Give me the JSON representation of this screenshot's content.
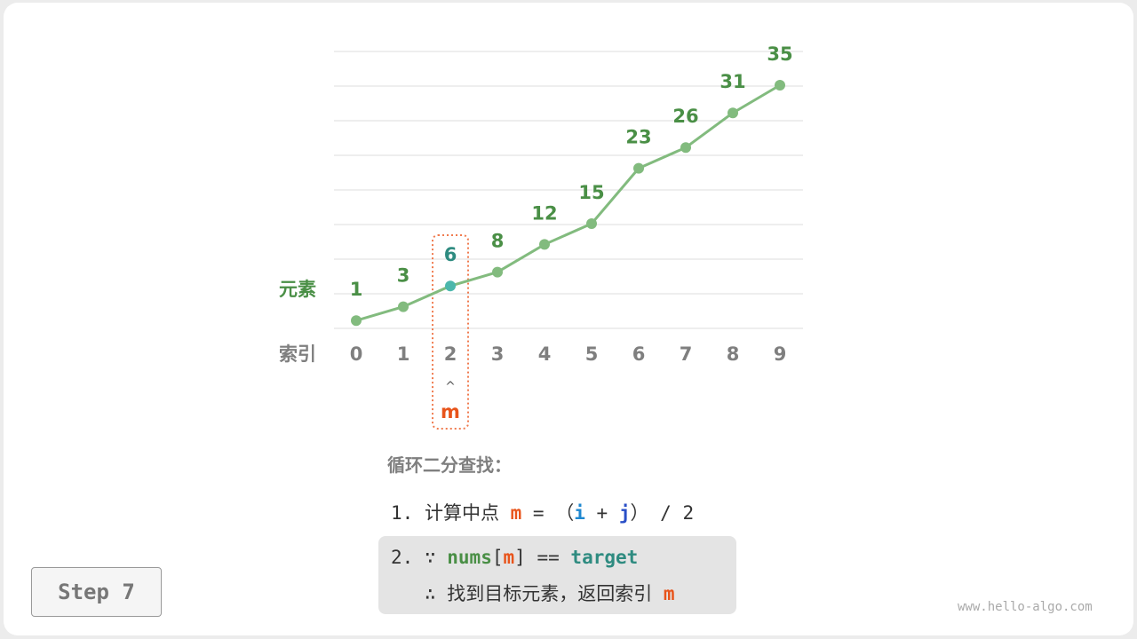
{
  "diagram": {
    "row_labels": {
      "elements": "元素",
      "indices": "索引"
    },
    "values": [
      1,
      3,
      6,
      8,
      12,
      15,
      23,
      26,
      31,
      35
    ],
    "indices": [
      "0",
      "1",
      "2",
      "3",
      "4",
      "5",
      "6",
      "7",
      "8",
      "9"
    ],
    "highlight_index": 2,
    "pointer_arrow": "^",
    "pointer_label": "m",
    "colors": {
      "line": "#82bb7e",
      "value_text": "#4a8f46",
      "highlight": "#4cb7ac",
      "highlight_text": "#2e8b80",
      "pointer": "#e8541b",
      "index_text": "#7f7f7f",
      "box": "#f07b4f"
    }
  },
  "explanation": {
    "title": "循环二分查找：",
    "step1": {
      "num": "1.",
      "text": "计算中点",
      "m": "m",
      "eq": "=",
      "lp": "（",
      "i": "i",
      "plus": "+",
      "j": "j",
      "rp": "）",
      "div": "/ 2"
    },
    "step2": {
      "num": "2.",
      "because": "∵",
      "nums": "nums",
      "lb": "[",
      "m": "m",
      "rb": "]",
      "eqeq": "==",
      "target": "target",
      "therefore": "∴",
      "text": "找到目标元素，返回索引",
      "m2": "m"
    }
  },
  "step_button": "Step 7",
  "watermark": "www.hello-algo.com"
}
